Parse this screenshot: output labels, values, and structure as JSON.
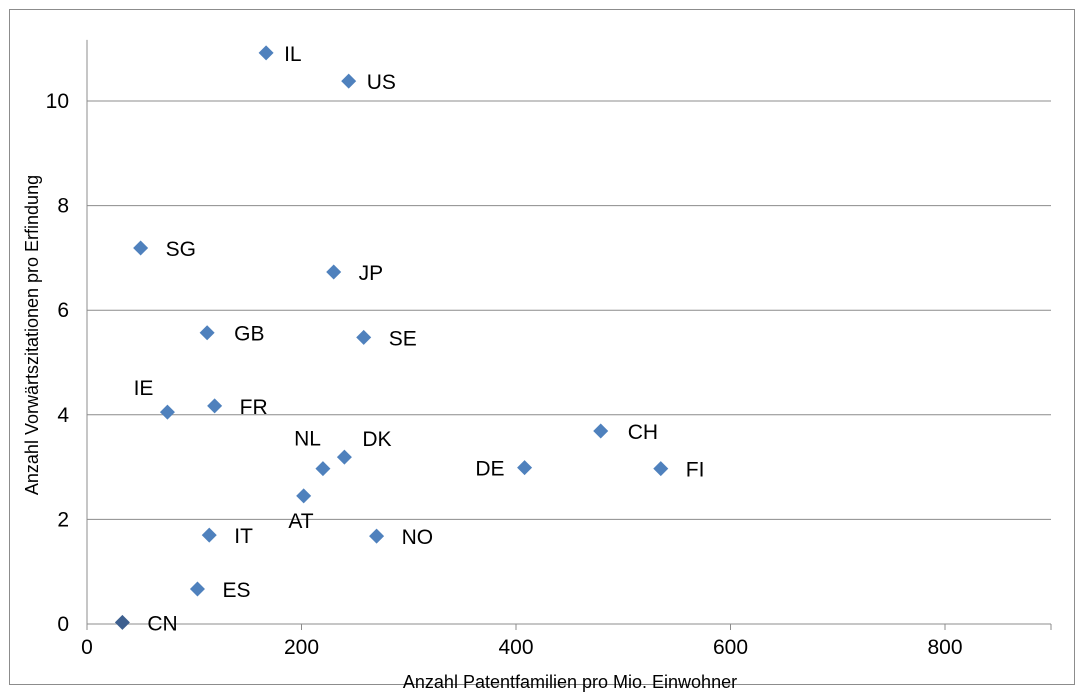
{
  "chart_data": {
    "type": "scatter",
    "title": "",
    "xlabel": "Anzahl Patentfamilien pro Mio. Einwohner",
    "ylabel": "Anzahl Vorwärtszitationen pro Erfindung",
    "xlim": [
      0,
      900
    ],
    "ylim": [
      0,
      10.9
    ],
    "x_ticks": [
      0,
      200,
      400,
      600,
      800
    ],
    "y_ticks": [
      0,
      2,
      4,
      6,
      8,
      10
    ],
    "grid": "horizontal",
    "legend": "none",
    "marker_color": "#4f81bd",
    "marker_color_highlight": "#3d5f8f",
    "points": [
      {
        "label": "IL",
        "x": 167,
        "y": 10.92
      },
      {
        "label": "US",
        "x": 244,
        "y": 10.38
      },
      {
        "label": "SG",
        "x": 50,
        "y": 7.19
      },
      {
        "label": "JP",
        "x": 230,
        "y": 6.73
      },
      {
        "label": "GB",
        "x": 112,
        "y": 5.57
      },
      {
        "label": "SE",
        "x": 258,
        "y": 5.48
      },
      {
        "label": "IE",
        "x": 75,
        "y": 4.05
      },
      {
        "label": "FR",
        "x": 119,
        "y": 4.17
      },
      {
        "label": "CH",
        "x": 479,
        "y": 3.69
      },
      {
        "label": "NL",
        "x": 220,
        "y": 2.97
      },
      {
        "label": "DK",
        "x": 240,
        "y": 3.19
      },
      {
        "label": "DE",
        "x": 408,
        "y": 2.99
      },
      {
        "label": "FI",
        "x": 535,
        "y": 2.97
      },
      {
        "label": "AT",
        "x": 202,
        "y": 2.45
      },
      {
        "label": "IT",
        "x": 114,
        "y": 1.7
      },
      {
        "label": "NO",
        "x": 270,
        "y": 1.68
      },
      {
        "label": "ES",
        "x": 103,
        "y": 0.67
      },
      {
        "label": "CN",
        "x": 33,
        "y": 0.03
      }
    ]
  }
}
